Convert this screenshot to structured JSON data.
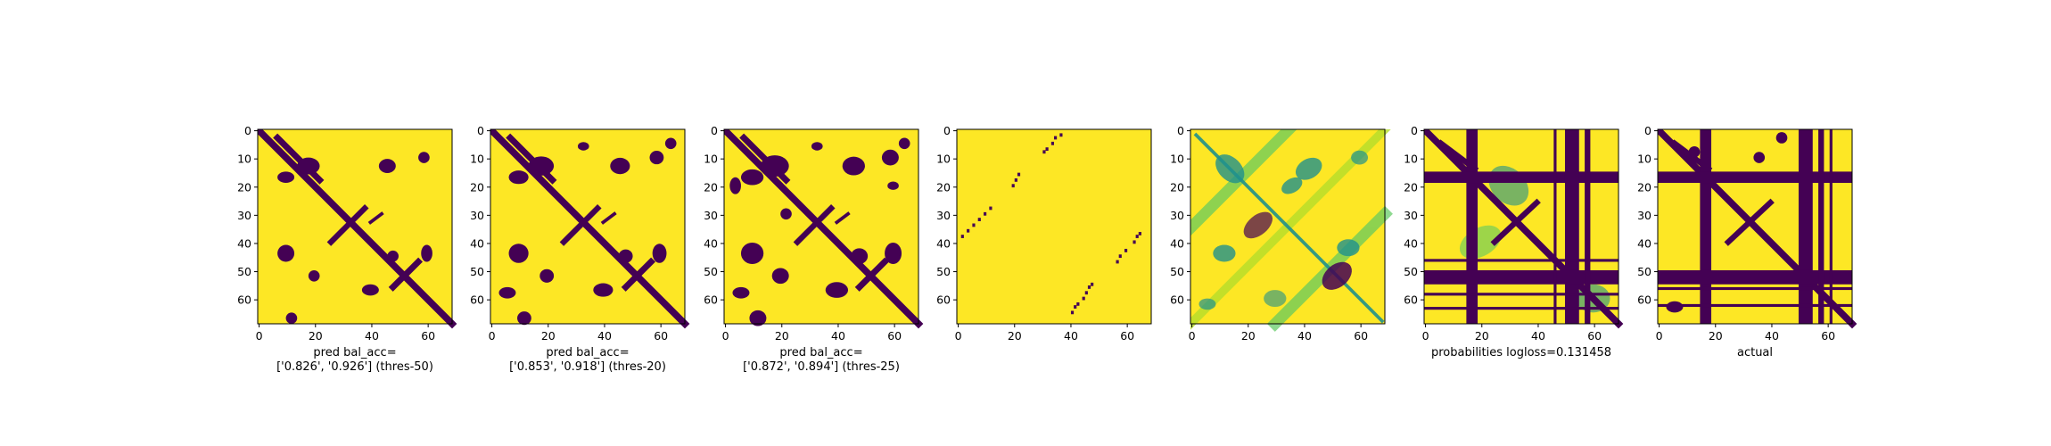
{
  "colors": {
    "fill": "#fde725",
    "dark": "#440154",
    "mid1": "#21918c",
    "mid2": "#5ec962",
    "light": "#b5de2b"
  },
  "chart_data": [
    {
      "type": "heatmap",
      "title": "",
      "xlabel": "pred bal_acc=",
      "xlabel_line2": "['0.826', '0.926'] (thres-50)",
      "xlim": [
        0,
        69
      ],
      "ylim": [
        69,
        0
      ],
      "xticks": [
        0,
        20,
        40,
        60
      ],
      "yticks": [
        0,
        10,
        20,
        30,
        40,
        50,
        60
      ],
      "colormap": "viridis",
      "values_range": [
        0,
        1
      ]
    },
    {
      "type": "heatmap",
      "title": "",
      "xlabel": "pred bal_acc=",
      "xlabel_line2": "['0.853', '0.918'] (thres-20)",
      "xlim": [
        0,
        69
      ],
      "ylim": [
        69,
        0
      ],
      "xticks": [
        0,
        20,
        40,
        60
      ],
      "yticks": [
        0,
        10,
        20,
        30,
        40,
        50,
        60
      ],
      "colormap": "viridis",
      "values_range": [
        0,
        1
      ]
    },
    {
      "type": "heatmap",
      "title": "",
      "xlabel": "pred bal_acc=",
      "xlabel_line2": "['0.872', '0.894'] (thres-25)",
      "xlim": [
        0,
        69
      ],
      "ylim": [
        69,
        0
      ],
      "xticks": [
        0,
        20,
        40,
        60
      ],
      "yticks": [
        0,
        10,
        20,
        30,
        40,
        50,
        60
      ],
      "colormap": "viridis",
      "values_range": [
        0,
        1
      ]
    },
    {
      "type": "heatmap",
      "title": "",
      "xlabel": "",
      "xlabel_line2": "",
      "xlim": [
        0,
        69
      ],
      "ylim": [
        69,
        0
      ],
      "xticks": [
        0,
        20,
        40,
        60
      ],
      "yticks": [
        0,
        10,
        20,
        30,
        40,
        50,
        60
      ],
      "colormap": "viridis",
      "values_range": [
        0,
        1
      ]
    },
    {
      "type": "heatmap",
      "title": "",
      "xlabel": "",
      "xlabel_line2": "",
      "xlim": [
        0,
        69
      ],
      "ylim": [
        69,
        0
      ],
      "xticks": [
        0,
        20,
        40,
        60
      ],
      "yticks": [
        0,
        10,
        20,
        30,
        40,
        50,
        60
      ],
      "colormap": "viridis",
      "values_range": [
        0,
        1
      ]
    },
    {
      "type": "heatmap",
      "title": "",
      "xlabel": "probabilities logloss=0.131458",
      "xlabel_line2": "",
      "xlim": [
        0,
        69
      ],
      "ylim": [
        69,
        0
      ],
      "xticks": [
        0,
        20,
        40,
        60
      ],
      "yticks": [
        0,
        10,
        20,
        30,
        40,
        50,
        60
      ],
      "colormap": "viridis",
      "values_range": [
        0,
        1
      ]
    },
    {
      "type": "heatmap",
      "title": "",
      "xlabel": "actual",
      "xlabel_line2": "",
      "xlim": [
        0,
        69
      ],
      "ylim": [
        69,
        0
      ],
      "xticks": [
        0,
        20,
        40,
        60
      ],
      "yticks": [
        0,
        10,
        20,
        30,
        40,
        50,
        60
      ],
      "colormap": "viridis",
      "values_range": [
        0,
        1
      ]
    }
  ]
}
